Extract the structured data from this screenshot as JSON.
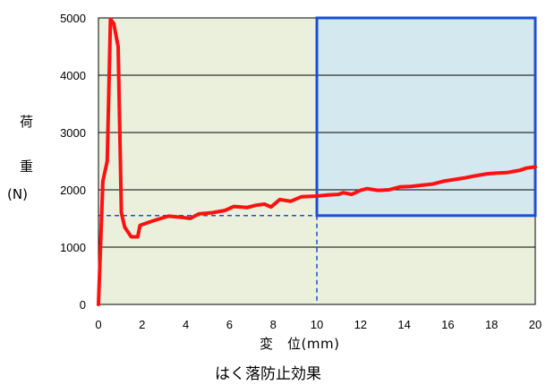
{
  "chart_data": {
    "type": "line",
    "title": "はく落防止効果",
    "ylabel_top": "荷",
    "ylabel_mid": "重",
    "ylabel_unit": "(N)",
    "xlabel": "変　位(mm)",
    "xlim": [
      0,
      20
    ],
    "ylim": [
      0,
      5000
    ],
    "x_ticks": [
      "0",
      "2",
      "4",
      "6",
      "8",
      "10",
      "12",
      "14",
      "16",
      "18",
      "20"
    ],
    "y_ticks": [
      "0",
      "1000",
      "2000",
      "3000",
      "4000",
      "5000"
    ],
    "grid": "horizontal",
    "colors": {
      "plot_area": "#ebf0dc",
      "highlight_fill": "#d3e8ef",
      "highlight_border": "#1a4fd6",
      "line": "#ff1111",
      "dashed": "#1a4fd6"
    },
    "highlight_region": {
      "x": [
        10,
        20
      ],
      "y": [
        1550,
        5000
      ]
    },
    "reference_lines": {
      "x": 10,
      "y": 1550
    },
    "series": [
      {
        "x": [
          0,
          0.2,
          0.4,
          0.55,
          0.7,
          0.9,
          1.05,
          1.2,
          1.5,
          1.8,
          1.9,
          2.2,
          2.6,
          3.2,
          3.8,
          4.2,
          4.6,
          5.2,
          5.8,
          6.2,
          6.8,
          7.2,
          7.6,
          7.9,
          8.3,
          8.8,
          9.3,
          10.0,
          10.5,
          11.0,
          11.2,
          11.6,
          12.0,
          12.3,
          12.8,
          13.3,
          13.8,
          14.3,
          14.8,
          15.3,
          15.8,
          16.3,
          16.8,
          17.2,
          17.8,
          18.2,
          18.7,
          19.0,
          19.3,
          19.6,
          20.0
        ],
        "values": [
          0,
          2150,
          2500,
          4980,
          4900,
          4500,
          1600,
          1350,
          1180,
          1180,
          1380,
          1420,
          1470,
          1540,
          1520,
          1500,
          1580,
          1600,
          1640,
          1710,
          1690,
          1730,
          1750,
          1700,
          1830,
          1800,
          1880,
          1890,
          1910,
          1920,
          1950,
          1920,
          1990,
          2020,
          1990,
          2000,
          2050,
          2060,
          2080,
          2100,
          2150,
          2180,
          2210,
          2240,
          2280,
          2290,
          2300,
          2320,
          2340,
          2380,
          2400
        ]
      }
    ]
  }
}
